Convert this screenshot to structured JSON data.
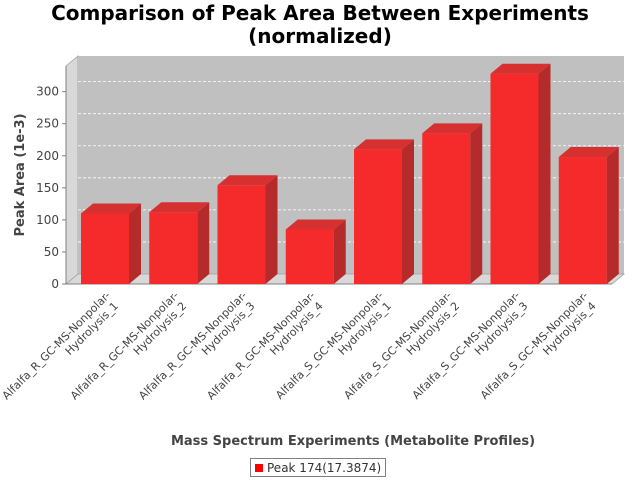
{
  "chart_data": {
    "type": "bar",
    "title": "Comparison of Peak Area Between Experiments\n(normalized)",
    "xlabel": "Mass Spectrum Experiments (Metabolite Profiles)",
    "ylabel": "Peak Area (1e-3)",
    "ylim": [
      0,
      340
    ],
    "yticks": [
      0,
      50,
      100,
      150,
      200,
      250,
      300
    ],
    "grid": true,
    "legend_position": "bottom",
    "categories": [
      "Alfalfa_R_GC-MS-Nonpolar-Hydrolysis_1",
      "Alfalfa_R_GC-MS-Nonpolar-Hydrolysis_2",
      "Alfalfa_R_GC-MS-Nonpolar-Hydrolysis_3",
      "Alfalfa_R_GC-MS-Nonpolar-Hydrolysis_4",
      "Alfalfa_S_GC-MS-Nonpolar-Hydrolysis_1",
      "Alfalfa_S_GC-MS-Nonpolar-Hydrolysis_2",
      "Alfalfa_S_GC-MS-Nonpolar-Hydrolysis_3",
      "Alfalfa_S_GC-MS-Nonpolar-Hydrolysis_4"
    ],
    "category_lines": [
      [
        "Alfalfa_R_GC-MS-Nonpolar-",
        "Hydrolysis_1"
      ],
      [
        "Alfalfa_R_GC-MS-Nonpolar-",
        "Hydrolysis_2"
      ],
      [
        "Alfalfa_R_GC-MS-Nonpolar-",
        "Hydrolysis_3"
      ],
      [
        "Alfalfa_R_GC-MS-Nonpolar-",
        "Hydrolysis_4"
      ],
      [
        "Alfalfa_S_GC-MS-Nonpolar-",
        "Hydrolysis_1"
      ],
      [
        "Alfalfa_S_GC-MS-Nonpolar-",
        "Hydrolysis_2"
      ],
      [
        "Alfalfa_S_GC-MS-Nonpolar-",
        "Hydrolysis_3"
      ],
      [
        "Alfalfa_S_GC-MS-Nonpolar-",
        "Hydrolysis_4"
      ]
    ],
    "series": [
      {
        "name": "Peak 174(17.3874)",
        "values": [
          110,
          112,
          154,
          85,
          210,
          235,
          328,
          198
        ],
        "color": "#ff0000"
      }
    ]
  }
}
